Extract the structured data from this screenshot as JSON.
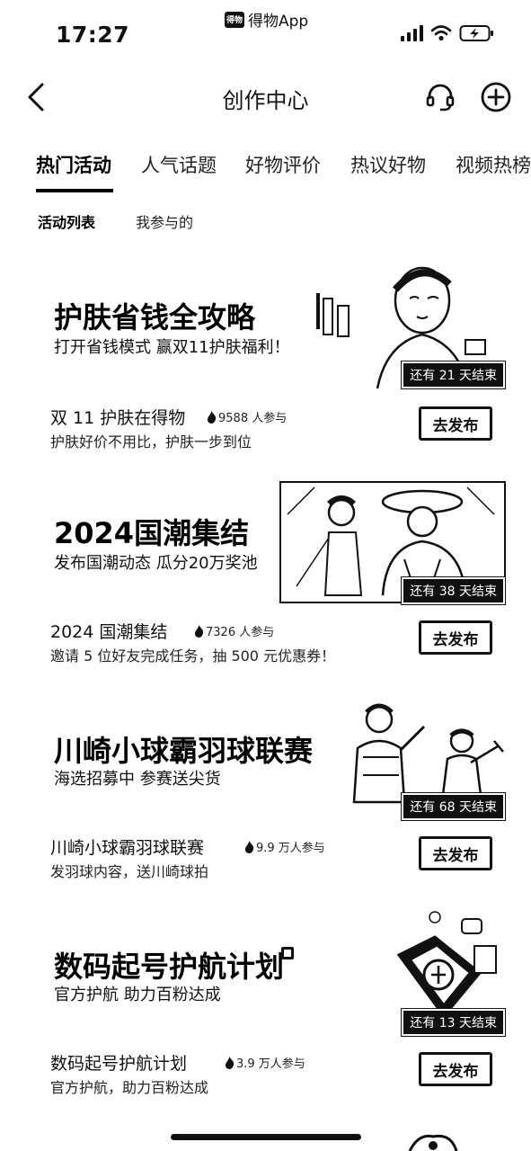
{
  "status_bar": {
    "time": "17:27",
    "app_name": "得物App",
    "app_logo_text": "得物"
  },
  "nav": {
    "title": "创作中心"
  },
  "tabs": [
    {
      "label": "热门活动",
      "active": true
    },
    {
      "label": "人气话题",
      "active": false
    },
    {
      "label": "好物评价",
      "active": false
    },
    {
      "label": "热议好物",
      "active": false
    },
    {
      "label": "视频热榜",
      "active": false
    }
  ],
  "subtabs": [
    {
      "label": "活动列表",
      "active": true
    },
    {
      "label": "我参与的",
      "active": false
    }
  ],
  "activities": [
    {
      "banner_title": "护肤省钱全攻略",
      "banner_subtitle": "打开省钱模式 赢双11护肤福利！",
      "countdown": "还有 21 天结束",
      "name": "双 11 护肤在得物",
      "participants": "9588 人参与",
      "description": "护肤好价不用比，护肤一步到位",
      "button": "去发布"
    },
    {
      "banner_title": "2024国潮集结",
      "banner_subtitle": "发布国潮动态 瓜分20万奖池",
      "countdown": "还有 38 天结束",
      "name": "2024 国潮集结",
      "participants": "7326 人参与",
      "description": "邀请 5 位好友完成任务，抽 500 元优惠券！",
      "button": "去发布"
    },
    {
      "banner_title": "川崎小球霸羽球联赛",
      "banner_subtitle": "海选招募中 参赛送尖货",
      "countdown": "还有 68 天结束",
      "name": "川崎小球霸羽球联赛",
      "participants": "9.9 万人参与",
      "description": "发羽球内容，送川崎球拍",
      "button": "去发布"
    },
    {
      "banner_title": "数码起号护航计划",
      "banner_subtitle": "官方护航 助力百粉达成",
      "countdown": "还有 13 天结束",
      "name": "数码起号护航计划",
      "participants": "3.9 万人参与",
      "description": "官方护航，助力百粉达成",
      "button": "去发布"
    }
  ]
}
